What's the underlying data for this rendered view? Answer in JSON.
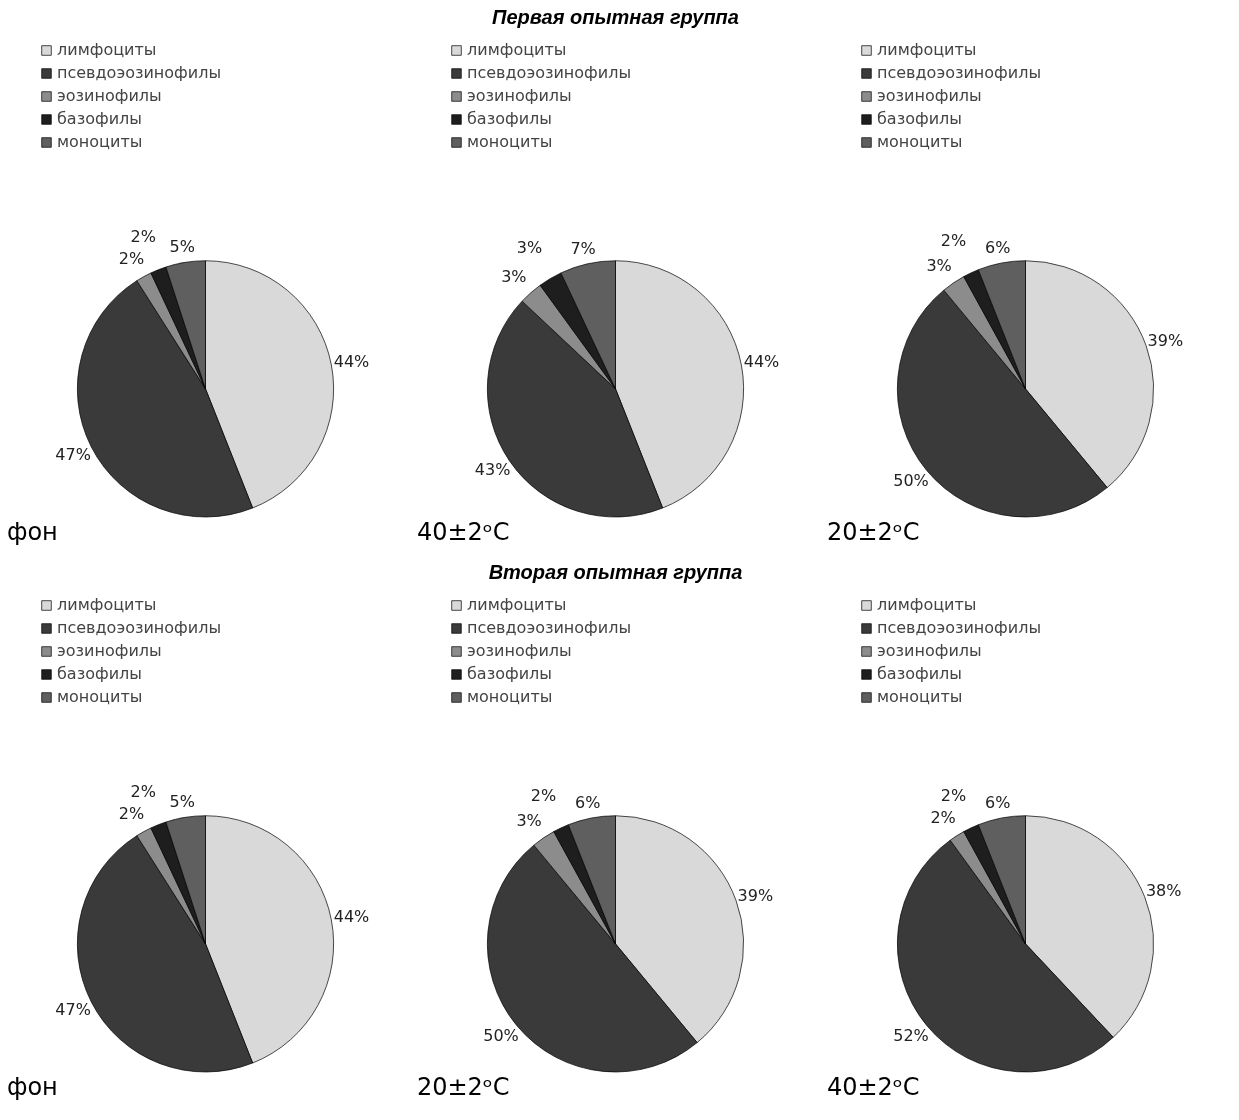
{
  "chart_data": [
    {
      "type": "pie",
      "categories": [
        "лимфоциты",
        "псевдоэозинофилы",
        "эозинофилы",
        "базофилы",
        "моноциты"
      ],
      "values": [
        44,
        47,
        2,
        2,
        5
      ],
      "colors": [
        "#d9d9d9",
        "#3a3a3a",
        "#8c8c8c",
        "#1e1e1e",
        "#5f5f5f"
      ],
      "value_labels": [
        "44%",
        "47%",
        "2%",
        "2%",
        "5%"
      ],
      "legend": "top left",
      "annotations": [
        "фон"
      ]
    },
    {
      "type": "pie",
      "title": "Первая опытная группа",
      "categories": [
        "лимфоциты",
        "псевдоэозинофилы",
        "эозинофилы",
        "базофилы",
        "моноциты"
      ],
      "values": [
        44,
        43,
        3,
        3,
        7
      ],
      "colors": [
        "#d9d9d9",
        "#3a3a3a",
        "#8c8c8c",
        "#1e1e1e",
        "#5f5f5f"
      ],
      "value_labels": [
        "44%",
        "43%",
        "3%",
        "3%",
        "7%"
      ],
      "legend": "top left",
      "annotations": [
        "40±2ᵒC"
      ]
    },
    {
      "type": "pie",
      "categories": [
        "лимфоциты",
        "псевдоэозинофилы",
        "эозинофилы",
        "базофилы",
        "моноциты"
      ],
      "values": [
        39,
        50,
        3,
        2,
        6
      ],
      "colors": [
        "#d9d9d9",
        "#3a3a3a",
        "#8c8c8c",
        "#1e1e1e",
        "#5f5f5f"
      ],
      "value_labels": [
        "39%",
        "50%",
        "3%",
        "2%",
        "6%"
      ],
      "legend": "top left",
      "annotations": [
        "20±2ᵒC"
      ]
    },
    {
      "type": "pie",
      "categories": [
        "лимфоциты",
        "псевдоэозинофилы",
        "эозинофилы",
        "базофилы",
        "моноциты"
      ],
      "values": [
        44,
        47,
        2,
        2,
        5
      ],
      "colors": [
        "#d9d9d9",
        "#3a3a3a",
        "#8c8c8c",
        "#1e1e1e",
        "#5f5f5f"
      ],
      "value_labels": [
        "44%",
        "47%",
        "2%",
        "2%",
        "5%"
      ],
      "legend": "top left",
      "annotations": [
        "фон"
      ]
    },
    {
      "type": "pie",
      "title": "Вторая опытная группа",
      "categories": [
        "лимфоциты",
        "псевдоэозинофилы",
        "эозинофилы",
        "базофилы",
        "моноциты"
      ],
      "values": [
        39,
        50,
        3,
        2,
        6
      ],
      "colors": [
        "#d9d9d9",
        "#3a3a3a",
        "#8c8c8c",
        "#1e1e1e",
        "#5f5f5f"
      ],
      "value_labels": [
        "39%",
        "50%",
        "3%",
        "2%",
        "6%"
      ],
      "legend": "top left",
      "annotations": [
        "20±2ᵒC"
      ]
    },
    {
      "type": "pie",
      "categories": [
        "лимфоциты",
        "псевдоэозинофилы",
        "эозинофилы",
        "базофилы",
        "моноциты"
      ],
      "values": [
        38,
        52,
        2,
        2,
        6
      ],
      "colors": [
        "#d9d9d9",
        "#3a3a3a",
        "#8c8c8c",
        "#1e1e1e",
        "#5f5f5f"
      ],
      "value_labels": [
        "38%",
        "52%",
        "2%",
        "2%",
        "6%"
      ],
      "legend": "top left",
      "annotations": [
        "40±2ᵒC"
      ]
    }
  ]
}
